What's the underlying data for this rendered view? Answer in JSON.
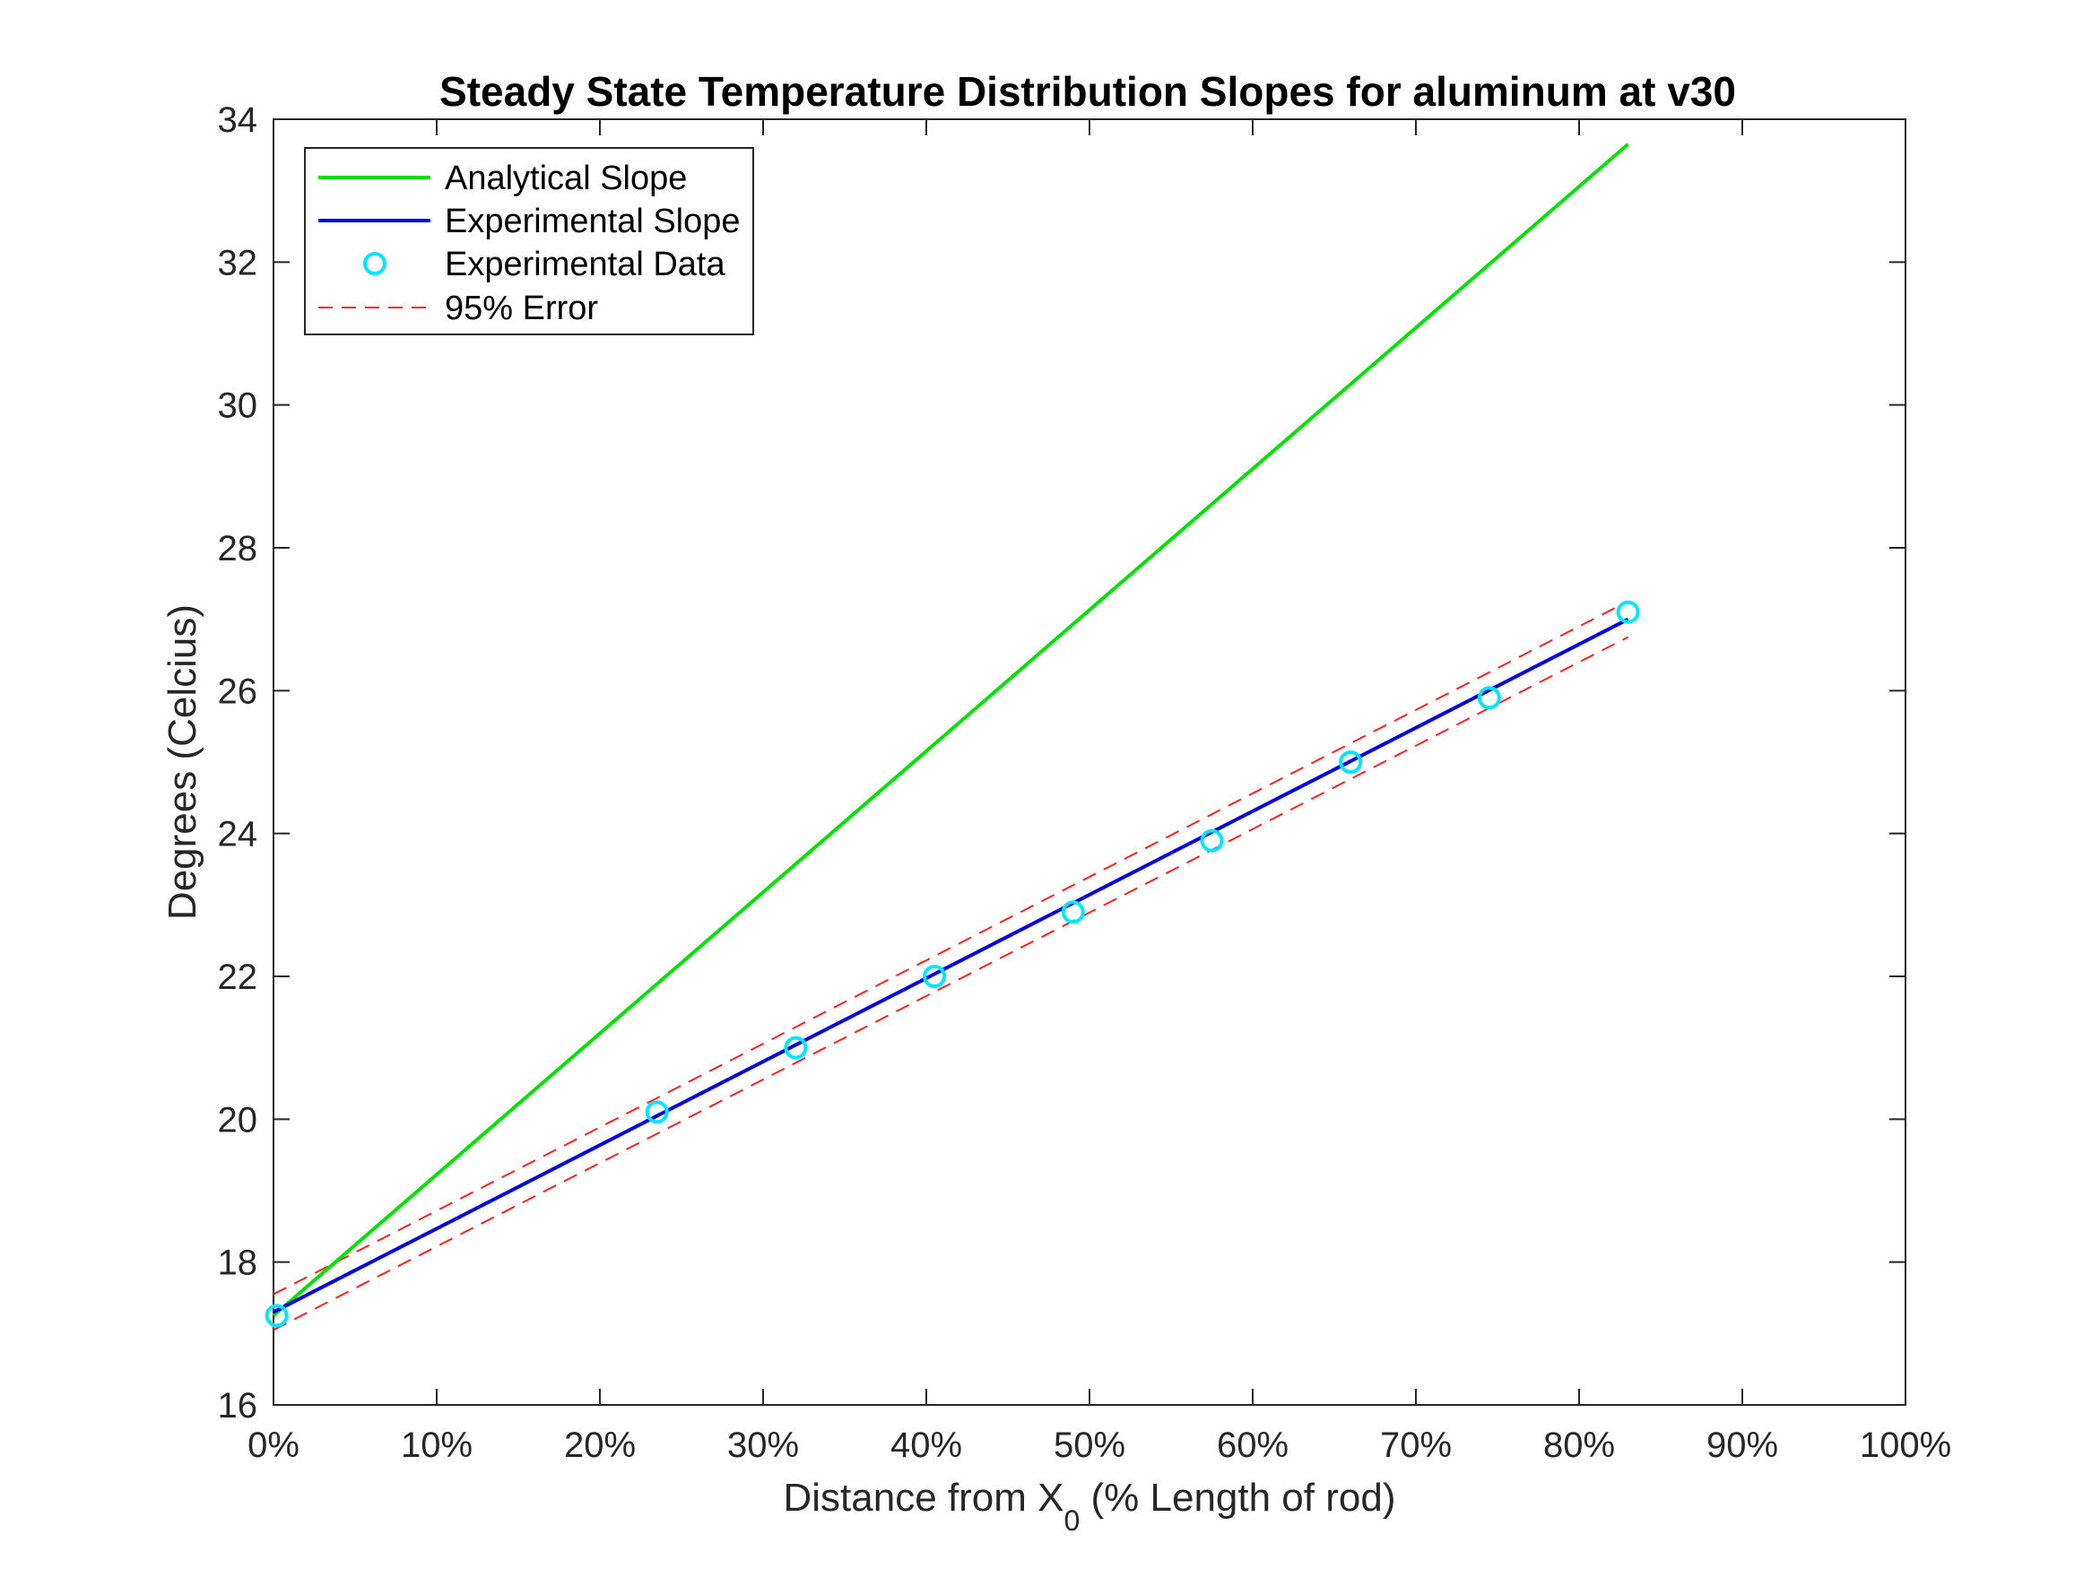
{
  "chart_data": {
    "type": "line",
    "title": "Steady State Temperature Distribution Slopes for aluminum at v30",
    "xlabel_main": "Distance from X",
    "xlabel_sub": "0",
    "xlabel_rest": " (% Length of rod)",
    "ylabel": "Degrees (Celcius)",
    "xlim": [
      0,
      100
    ],
    "ylim": [
      16,
      34
    ],
    "x_ticks": [
      0,
      10,
      20,
      30,
      40,
      50,
      60,
      70,
      80,
      90,
      100
    ],
    "x_tick_labels": [
      "0%",
      "10%",
      "20%",
      "30%",
      "40%",
      "50%",
      "60%",
      "70%",
      "80%",
      "90%",
      "100%"
    ],
    "y_ticks": [
      16,
      18,
      20,
      22,
      24,
      26,
      28,
      30,
      32,
      34
    ],
    "y_tick_labels": [
      "16",
      "18",
      "20",
      "22",
      "24",
      "26",
      "28",
      "30",
      "32",
      "34"
    ],
    "grid": false,
    "legend_position": "top-left",
    "series": [
      {
        "name": "Analytical Slope",
        "style": "line",
        "color": "#00e000",
        "x": [
          0,
          83
        ],
        "y": [
          17.25,
          33.65
        ]
      },
      {
        "name": "Experimental Slope",
        "style": "line",
        "color": "#0000e0",
        "x": [
          0,
          83
        ],
        "y": [
          17.3,
          27.0
        ]
      },
      {
        "name": "Experimental Data",
        "style": "markers",
        "color": "#00e5ff",
        "x": [
          0.2,
          23.5,
          32,
          40.5,
          49,
          57.5,
          66,
          74.5,
          83
        ],
        "y": [
          17.25,
          20.1,
          21.0,
          22.0,
          22.9,
          23.9,
          25.0,
          25.9,
          27.1
        ]
      },
      {
        "name": "95% Error",
        "style": "dashed",
        "color": "#ff2020",
        "x": [
          0,
          83
        ],
        "y": [
          17.55,
          27.25
        ]
      },
      {
        "name": "",
        "style": "dashed",
        "color": "#ff2020",
        "x": [
          0,
          83
        ],
        "y": [
          17.05,
          26.75
        ]
      }
    ]
  }
}
